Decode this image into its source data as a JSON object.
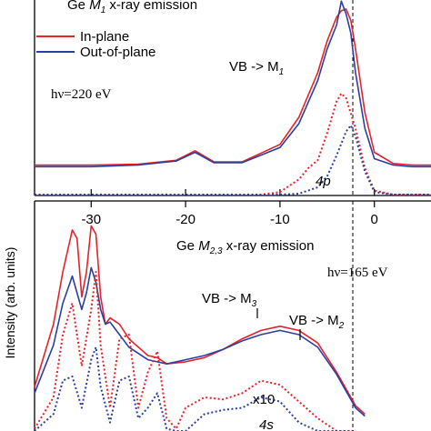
{
  "chart_data": [
    {
      "type": "line",
      "title": "Ge M1 x-ray emission",
      "title_parts": {
        "prefix": "Ge ",
        "main": "M",
        "sub": "1",
        "suffix": " x-ray emission"
      },
      "photon_energy": "hν=220 eV",
      "legend": {
        "placement": "top-left",
        "entries": [
          {
            "label": "In-plane",
            "color": "#e8202a"
          },
          {
            "label": "Out-of-plane",
            "color": "#2a3f9e"
          }
        ]
      },
      "annotations": [
        {
          "parts": {
            "main": "VB -> M",
            "sub": "1"
          },
          "x": -10
        },
        {
          "text": "4p",
          "x": -5
        }
      ],
      "xlim": [
        -36,
        6
      ],
      "zero_line": 0,
      "series": [
        {
          "name": "In-plane",
          "color": "#e8202a",
          "style": "solid",
          "x": [
            -36,
            -30,
            -25,
            -21,
            -19,
            -17,
            -14,
            -10,
            -8,
            -6,
            -5,
            -4,
            -3.5,
            -3,
            -2.5,
            -2,
            -1,
            0,
            2,
            4,
            6
          ],
          "y": [
            0.02,
            0.02,
            0.025,
            0.05,
            0.11,
            0.04,
            0.04,
            0.15,
            0.32,
            0.6,
            0.8,
            0.95,
            0.99,
            1.0,
            0.93,
            0.75,
            0.35,
            0.1,
            0.03,
            0.02,
            0.02
          ]
        },
        {
          "name": "Out-of-plane",
          "color": "#2a3f9e",
          "style": "solid",
          "x": [
            -36,
            -30,
            -25,
            -21,
            -19,
            -17,
            -14,
            -10,
            -8,
            -6,
            -5,
            -4,
            -3.5,
            -3,
            -2.5,
            -2,
            -1,
            0,
            2,
            4,
            6
          ],
          "y": [
            0.01,
            0.01,
            0.02,
            0.045,
            0.1,
            0.035,
            0.035,
            0.13,
            0.28,
            0.55,
            0.75,
            0.9,
            1.05,
            0.97,
            0.85,
            0.6,
            0.25,
            0.06,
            0.02,
            0.01,
            0.01
          ]
        },
        {
          "name": "In-plane (4p)",
          "color": "#e8202a",
          "style": "dotted",
          "x": [
            -36,
            -12,
            -10,
            -8,
            -7,
            -6,
            -5,
            -4,
            -3.5,
            -3,
            -2,
            -1,
            0,
            2,
            6
          ],
          "y": [
            -0.18,
            -0.18,
            -0.15,
            -0.07,
            0.0,
            0.05,
            0.22,
            0.42,
            0.47,
            0.44,
            0.25,
            0.0,
            -0.14,
            -0.18,
            -0.18
          ]
        },
        {
          "name": "Out-of-plane (4p)",
          "color": "#2a3f9e",
          "style": "dotted",
          "x": [
            -36,
            -12,
            -10,
            -8,
            -6,
            -5,
            -4,
            -3,
            -2.5,
            -2,
            -1,
            0,
            2,
            6
          ],
          "y": [
            -0.18,
            -0.18,
            -0.18,
            -0.16,
            -0.12,
            -0.05,
            0.08,
            0.23,
            0.27,
            0.2,
            -0.02,
            -0.15,
            -0.18,
            -0.18
          ]
        }
      ]
    },
    {
      "type": "line",
      "title": "Ge M2,3 x-ray emission",
      "title_parts": {
        "prefix": "Ge ",
        "main": "M",
        "sub": "2,3",
        "suffix": " x-ray emission"
      },
      "photon_energy": "hν=165 eV",
      "ylabel": "Intensity (arb. units)",
      "xlim": [
        -36,
        6
      ],
      "xticks": [
        -30,
        -20,
        -10,
        0
      ],
      "zero_line": 0,
      "annotations": [
        {
          "parts": {
            "main": "VB -> M",
            "sub": "3"
          },
          "x": -11
        },
        {
          "parts": {
            "main": "VB -> M",
            "sub": "2"
          },
          "x": -4
        },
        {
          "text": "x10",
          "x": -10
        },
        {
          "text": "4s",
          "x": -9
        }
      ],
      "series": [
        {
          "name": "In-plane",
          "color": "#e8202a",
          "style": "solid",
          "x": [
            -36,
            -34,
            -33,
            -32,
            -31.5,
            -31,
            -30.5,
            -30,
            -29.5,
            -29,
            -28.5,
            -28,
            -27,
            -26,
            -25,
            -24,
            -23,
            -22,
            -20,
            -18,
            -16,
            -14,
            -12,
            -10,
            -8,
            -6,
            -4,
            -2,
            -1
          ],
          "y": [
            0.15,
            0.45,
            0.7,
            0.9,
            0.86,
            0.58,
            0.7,
            0.92,
            0.88,
            0.58,
            0.45,
            0.48,
            0.45,
            0.38,
            0.34,
            0.3,
            0.29,
            0.26,
            0.27,
            0.29,
            0.33,
            0.38,
            0.42,
            0.44,
            0.42,
            0.36,
            0.22,
            0.06,
            0.02
          ]
        },
        {
          "name": "Out-of-plane",
          "color": "#2a3f9e",
          "style": "solid",
          "x": [
            -36,
            -34,
            -33,
            -32,
            -31.5,
            -31,
            -30.5,
            -30,
            -29.5,
            -29,
            -28.5,
            -28,
            -27,
            -26,
            -25,
            -24,
            -23,
            -22,
            -20,
            -18,
            -16,
            -14,
            -12,
            -10,
            -8,
            -6,
            -4,
            -2,
            -1
          ],
          "y": [
            0.12,
            0.35,
            0.55,
            0.68,
            0.6,
            0.52,
            0.6,
            0.72,
            0.65,
            0.52,
            0.45,
            0.46,
            0.4,
            0.34,
            0.31,
            0.28,
            0.27,
            0.26,
            0.28,
            0.3,
            0.33,
            0.37,
            0.4,
            0.42,
            0.4,
            0.34,
            0.21,
            0.05,
            0.01
          ]
        },
        {
          "name": "In-plane x10 (4s)",
          "color": "#e8202a",
          "style": "dotted",
          "x": [
            -36,
            -34,
            -33,
            -32,
            -31,
            -30,
            -29.5,
            -29,
            -28,
            -27,
            -26,
            -25,
            -24,
            -23,
            -22,
            -21,
            -20,
            -18,
            -16,
            -14,
            -12,
            -10,
            -8,
            -6,
            -4,
            -2
          ],
          "y": [
            -0.05,
            0.1,
            0.4,
            0.55,
            0.25,
            0.52,
            0.7,
            0.35,
            0.05,
            0.38,
            0.4,
            0.05,
            0.22,
            0.32,
            0.0,
            -0.05,
            0.05,
            0.1,
            0.09,
            0.12,
            0.18,
            0.16,
            0.08,
            0.0,
            -0.12,
            -0.2
          ]
        },
        {
          "name": "Out-of-plane x10 (4s)",
          "color": "#2a3f9e",
          "style": "dotted",
          "x": [
            -36,
            -34,
            -33,
            -32,
            -31,
            -30,
            -29.5,
            -29,
            -28,
            -27,
            -26,
            -25,
            -24,
            -23,
            -22,
            -21,
            -20,
            -18,
            -16,
            -14,
            -12,
            -10,
            -8,
            -6,
            -4,
            -2
          ],
          "y": [
            -0.08,
            0.02,
            0.18,
            0.2,
            0.05,
            0.28,
            0.34,
            0.15,
            -0.02,
            0.18,
            0.2,
            0.0,
            0.05,
            0.12,
            -0.05,
            -0.08,
            -0.15,
            0.02,
            0.04,
            0.05,
            0.1,
            0.08,
            -0.02,
            -0.1,
            -0.18,
            -0.25
          ]
        }
      ]
    }
  ]
}
